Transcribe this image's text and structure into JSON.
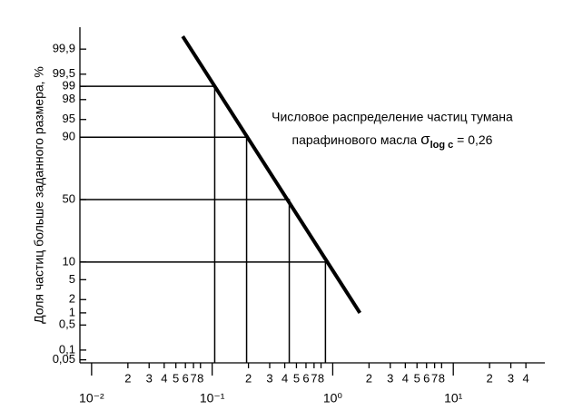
{
  "chart_data": {
    "type": "line",
    "y_label": "Доля частиц больше заданного размера, %",
    "annotation": {
      "line1": "Числовое распределение частиц тумана",
      "line2": "парафинового масла",
      "symbol": "σ",
      "subscript": "log c",
      "rest": "= 0,26"
    },
    "xscale": "log",
    "yscale": "probability",
    "xlim": [
      0.008,
      50
    ],
    "ylim": [
      0.04,
      99.98
    ],
    "xticks": [
      {
        "value": 0.01,
        "label": "10⁻²"
      },
      {
        "value": 0.1,
        "label": "10⁻¹"
      },
      {
        "value": 1,
        "label": "10⁰"
      },
      {
        "value": 10,
        "label": "10¹"
      }
    ],
    "xminor_ticks": [
      {
        "value": 0.02,
        "label": "2"
      },
      {
        "value": 0.03,
        "label": "3"
      },
      {
        "value": 0.04,
        "label": "4"
      },
      {
        "value": 0.05,
        "label": "5"
      },
      {
        "value": 0.06,
        "label": "6"
      },
      {
        "value": 0.07,
        "label": "7"
      },
      {
        "value": 0.08,
        "label": "8"
      },
      {
        "value": 0.2,
        "label": "2"
      },
      {
        "value": 0.3,
        "label": "3"
      },
      {
        "value": 0.4,
        "label": "4"
      },
      {
        "value": 0.5,
        "label": "5"
      },
      {
        "value": 0.6,
        "label": "6"
      },
      {
        "value": 0.7,
        "label": "7"
      },
      {
        "value": 0.8,
        "label": "8"
      },
      2,
      3,
      4,
      5,
      6,
      7,
      8,
      {
        "value": 20,
        "label": "2"
      },
      {
        "value": 30,
        "label": "3"
      },
      {
        "value": 40,
        "label": "4"
      }
    ],
    "yticks": [
      {
        "value": 0.05,
        "label": "0,05"
      },
      {
        "value": 0.1,
        "label": "0,1"
      },
      {
        "value": 0.5,
        "label": "0,5"
      },
      1,
      2,
      5,
      10,
      50,
      90,
      95,
      98,
      99,
      {
        "value": 99.5,
        "label": "99,5"
      },
      {
        "value": 99.9,
        "label": "99,9"
      }
    ],
    "series": [
      {
        "color": "#000000",
        "x": [
          0.057,
          1.68
        ],
        "values": [
          99.96,
          1
        ]
      }
    ],
    "reference_points": {
      "x": [
        0.105,
        0.193,
        0.436,
        0.87
      ],
      "values": [
        99,
        90,
        50,
        10
      ]
    }
  }
}
